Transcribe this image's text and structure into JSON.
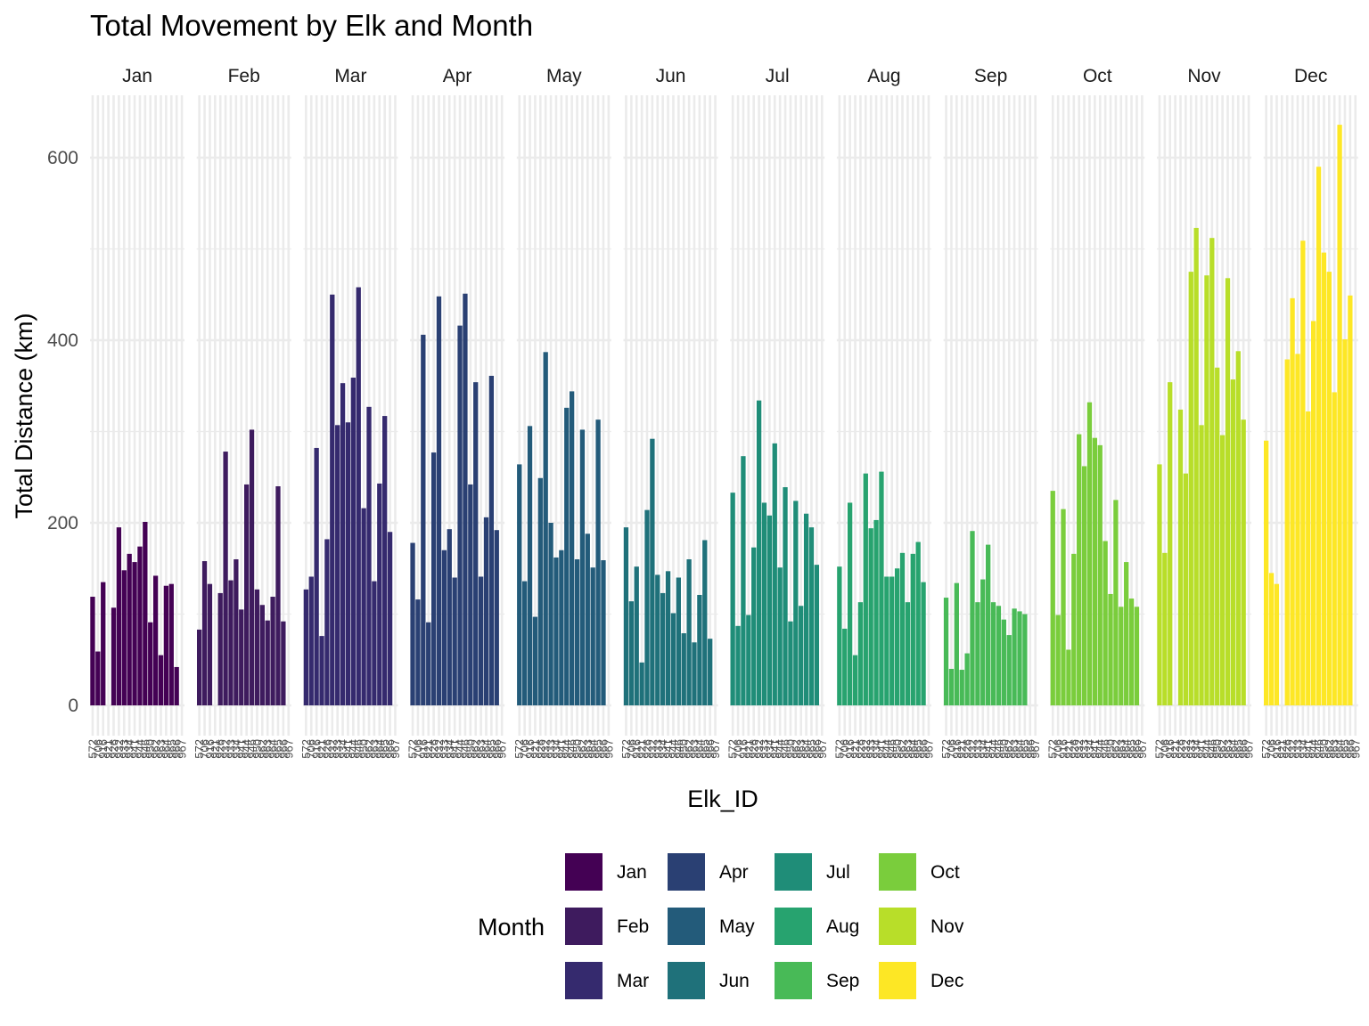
{
  "chart_data": {
    "type": "bar",
    "title": "Total Movement by Elk and Month",
    "xlabel": "Elk_ID",
    "ylabel": "Total Distance (km)",
    "ylim": [
      -30,
      665
    ],
    "y_ticks": [
      0,
      200,
      400,
      600
    ],
    "grid": true,
    "legend": {
      "title": "Month",
      "position": "bottom"
    },
    "x_tick_labels": [
      "572",
      "706",
      "916",
      "921",
      "926",
      "932",
      "933",
      "934",
      "941",
      "944",
      "946",
      "950",
      "962",
      "963",
      "964",
      "965",
      "966",
      "967"
    ],
    "facets": [
      {
        "label": "Jan",
        "color": "#440154",
        "values": [
          119,
          59,
          135,
          0,
          107,
          195,
          148,
          166,
          157,
          174,
          201,
          91,
          142,
          55,
          131,
          133,
          42,
          0
        ]
      },
      {
        "label": "Feb",
        "color": "#3e1b5e",
        "values": [
          83,
          158,
          133,
          0,
          123,
          278,
          137,
          160,
          105,
          242,
          302,
          127,
          110,
          93,
          119,
          240,
          92,
          0
        ]
      },
      {
        "label": "Mar",
        "color": "#352a6e",
        "values": [
          127,
          141,
          282,
          76,
          182,
          450,
          307,
          353,
          310,
          359,
          458,
          216,
          327,
          136,
          243,
          317,
          190,
          0
        ]
      },
      {
        "label": "Apr",
        "color": "#2a4073",
        "values": [
          178,
          116,
          406,
          91,
          277,
          448,
          170,
          193,
          140,
          416,
          451,
          242,
          354,
          141,
          206,
          361,
          192,
          0
        ]
      },
      {
        "label": "May",
        "color": "#235b7a",
        "values": [
          264,
          136,
          306,
          97,
          249,
          387,
          200,
          162,
          170,
          326,
          344,
          160,
          302,
          188,
          151,
          313,
          159,
          0
        ]
      },
      {
        "label": "Jun",
        "color": "#1f717a",
        "values": [
          195,
          114,
          152,
          47,
          214,
          292,
          143,
          123,
          147,
          101,
          140,
          79,
          160,
          69,
          121,
          181,
          73,
          0
        ]
      },
      {
        "label": "Jul",
        "color": "#1f8d78",
        "values": [
          233,
          87,
          273,
          99,
          173,
          334,
          222,
          208,
          287,
          151,
          239,
          92,
          224,
          109,
          210,
          195,
          154,
          0
        ]
      },
      {
        "label": "Aug",
        "color": "#27a36f",
        "values": [
          152,
          84,
          222,
          55,
          113,
          254,
          194,
          203,
          256,
          141,
          141,
          150,
          167,
          113,
          166,
          179,
          135,
          0
        ]
      },
      {
        "label": "Sep",
        "color": "#48ba57",
        "values": [
          118,
          40,
          134,
          39,
          57,
          191,
          113,
          138,
          176,
          113,
          109,
          94,
          77,
          106,
          103,
          100,
          0,
          0
        ]
      },
      {
        "label": "Oct",
        "color": "#7acd3c",
        "values": [
          235,
          99,
          215,
          61,
          166,
          297,
          262,
          332,
          293,
          285,
          180,
          122,
          225,
          108,
          157,
          117,
          108,
          0
        ]
      },
      {
        "label": "Nov",
        "color": "#b8de29",
        "values": [
          264,
          167,
          354,
          0,
          324,
          254,
          475,
          523,
          307,
          471,
          512,
          370,
          296,
          468,
          357,
          388,
          313,
          0
        ]
      },
      {
        "label": "Dec",
        "color": "#fde725",
        "values": [
          290,
          145,
          133,
          0,
          379,
          446,
          385,
          509,
          322,
          421,
          590,
          496,
          475,
          343,
          636,
          401,
          449,
          0
        ]
      }
    ]
  }
}
